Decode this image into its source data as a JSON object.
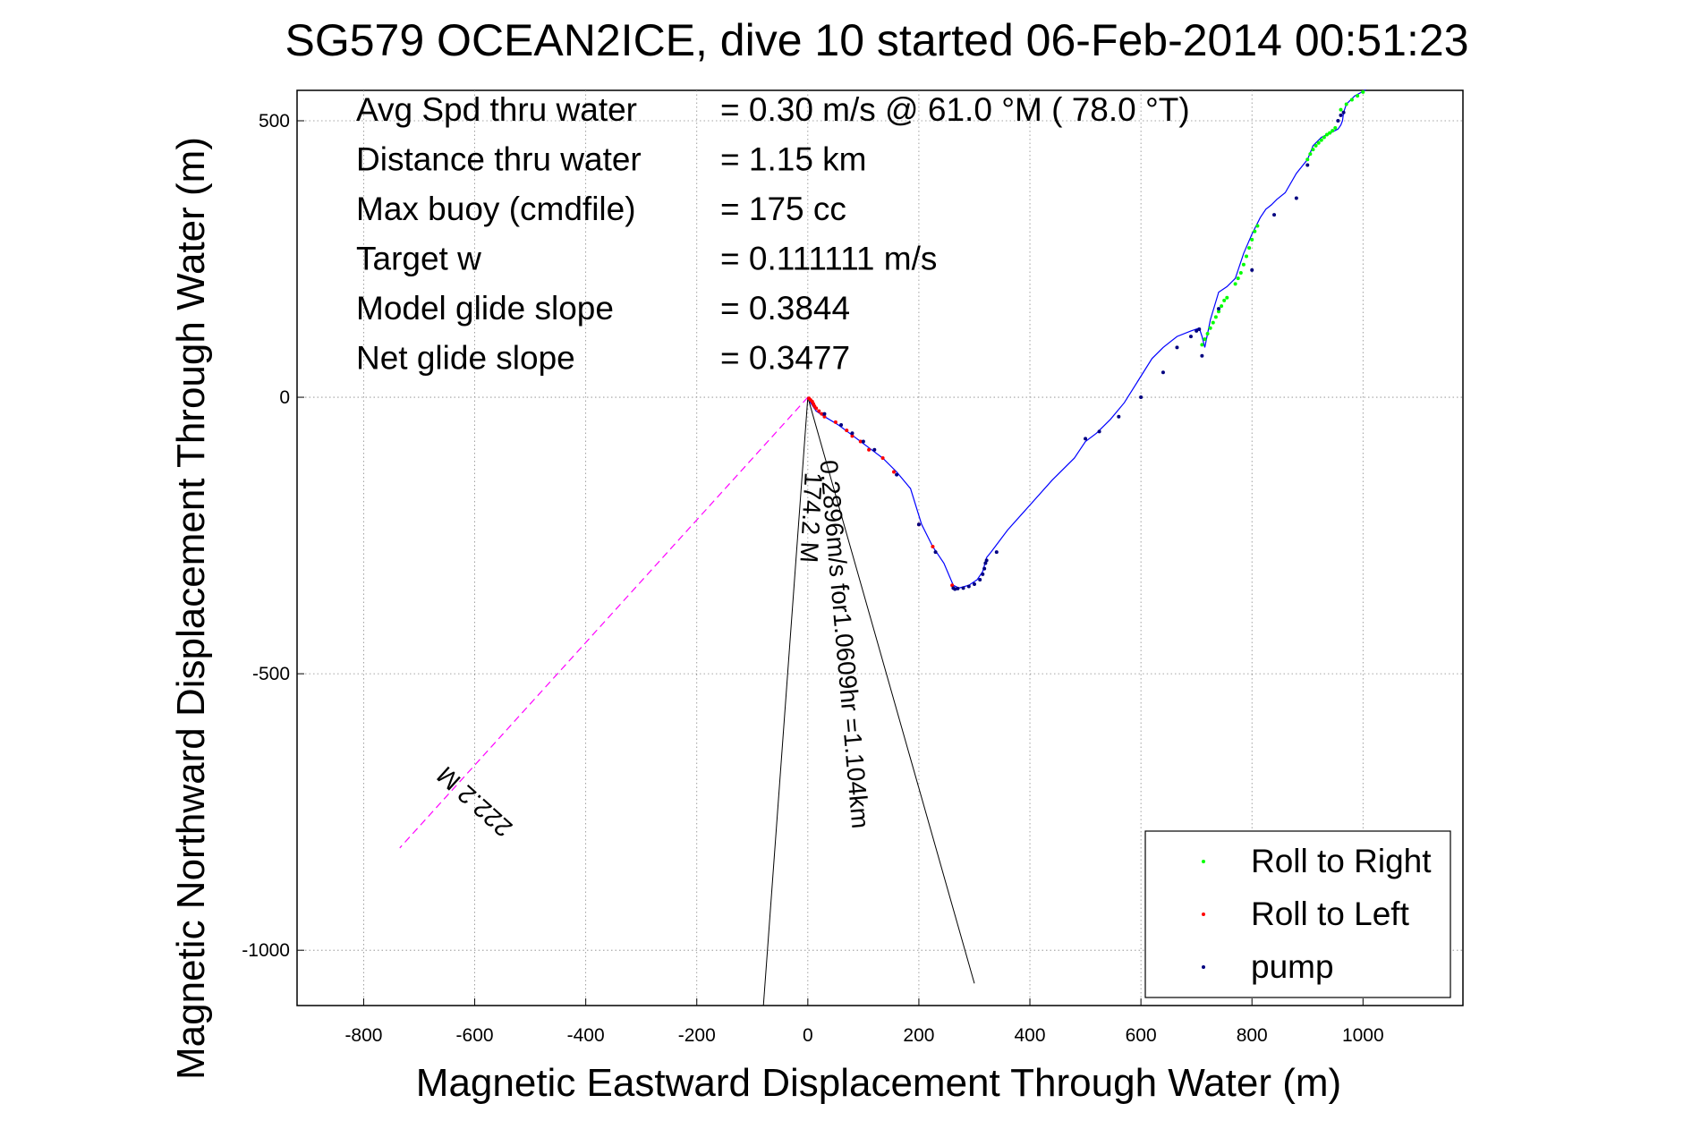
{
  "chart_data": {
    "type": "line",
    "title": "SG579 OCEAN2ICE, dive 10 started 06-Feb-2014 00:51:23",
    "xlabel": "Magnetic Eastward Displacement Through Water (m)",
    "ylabel": "Magnetic Northward Displacement Through Water (m)",
    "xlim": [
      -920,
      1180
    ],
    "ylim": [
      -1100,
      555
    ],
    "xticks": [
      -800,
      -600,
      -400,
      -200,
      0,
      200,
      400,
      600,
      800,
      1000
    ],
    "xtick_labels": [
      "-800",
      "-600",
      "-400",
      "-200",
      "0",
      "200",
      "400",
      "600",
      "800",
      "1000"
    ],
    "yticks": [
      500,
      0,
      -500,
      -1000
    ],
    "ytick_labels": [
      "500",
      "0",
      "-500",
      "-1000"
    ],
    "grid": true,
    "legend_position": "bottom-right",
    "stats": [
      {
        "label": "Avg Spd thru water",
        "value": "=  0.30 m/s @  61.0 °M ( 78.0 °T)"
      },
      {
        "label": "Distance thru water",
        "value": "=  1.15 km"
      },
      {
        "label": "Max buoy (cmdfile)",
        "value": "= 175 cc"
      },
      {
        "label": "Target w",
        "value": "= 0.111111 m/s"
      },
      {
        "label": "Model glide slope",
        "value": "= 0.3844"
      },
      {
        "label": "Net glide slope",
        "value": "= 0.3477"
      }
    ],
    "track": {
      "color": "#0000ff",
      "x": [
        0,
        5,
        15,
        30,
        55,
        75,
        95,
        115,
        135,
        160,
        185,
        205,
        225,
        245,
        262,
        272,
        290,
        305,
        315,
        322,
        330,
        360,
        400,
        440,
        480,
        500,
        520,
        545,
        570,
        595,
        620,
        640,
        665,
        690,
        705,
        710,
        715,
        725,
        740,
        755,
        770,
        785,
        800,
        815,
        825,
        835,
        845,
        860,
        880,
        900,
        910,
        925,
        945,
        955,
        960,
        963,
        965,
        970,
        985,
        1005
      ],
      "y": [
        0,
        -10,
        -25,
        -35,
        -50,
        -65,
        -80,
        -95,
        -110,
        -135,
        -165,
        -230,
        -270,
        -300,
        -340,
        -345,
        -340,
        -330,
        -315,
        -290,
        -280,
        -240,
        -195,
        -150,
        -110,
        -80,
        -65,
        -40,
        -10,
        30,
        70,
        90,
        110,
        120,
        125,
        110,
        90,
        140,
        190,
        200,
        215,
        260,
        295,
        325,
        340,
        348,
        358,
        370,
        405,
        430,
        455,
        470,
        480,
        485,
        492,
        500,
        515,
        530,
        545,
        556
      ]
    },
    "series": [
      {
        "name": "Roll to Right",
        "color": "#00ff00",
        "x": [
          710,
          715,
          720,
          725,
          730,
          735,
          740,
          745,
          750,
          755,
          770,
          775,
          780,
          785,
          790,
          795,
          800,
          805,
          810,
          900,
          905,
          910,
          915,
          920,
          925,
          930,
          935,
          940,
          945,
          950,
          960,
          970,
          980,
          990,
          1000
        ],
        "y": [
          95,
          105,
          115,
          125,
          135,
          145,
          155,
          165,
          175,
          180,
          205,
          215,
          225,
          240,
          255,
          270,
          285,
          300,
          310,
          430,
          440,
          448,
          455,
          460,
          465,
          470,
          475,
          478,
          482,
          487,
          520,
          530,
          538,
          545,
          552
        ]
      },
      {
        "name": "Roll to Left",
        "color": "#ff0000",
        "x": [
          2,
          5,
          8,
          10,
          12,
          15,
          20,
          25,
          30,
          50,
          70,
          80,
          95,
          110,
          135,
          155,
          200,
          225,
          260
        ],
        "y": [
          -2,
          -5,
          -8,
          -12,
          -16,
          -20,
          -25,
          -30,
          -35,
          -45,
          -60,
          -70,
          -80,
          -95,
          -110,
          -135,
          -230,
          -270,
          -340
        ]
      },
      {
        "name": "pump",
        "color": "#000080",
        "x": [
          30,
          60,
          80,
          100,
          120,
          160,
          200,
          230,
          262,
          265,
          270,
          280,
          290,
          300,
          310,
          315,
          318,
          320,
          322,
          340,
          500,
          525,
          560,
          600,
          640,
          665,
          690,
          700,
          705,
          710,
          740,
          800,
          840,
          880,
          900,
          955,
          960,
          965
        ],
        "y": [
          -30,
          -50,
          -65,
          -80,
          -95,
          -140,
          -230,
          -280,
          -345,
          -347,
          -346,
          -345,
          -342,
          -338,
          -330,
          -320,
          -310,
          -300,
          -295,
          -280,
          -75,
          -62,
          -35,
          0,
          45,
          90,
          110,
          120,
          123,
          75,
          160,
          230,
          330,
          360,
          420,
          500,
          510,
          515
        ]
      }
    ],
    "annotations": {
      "mag_line_label": "222.2 M",
      "mag_line_color": "#ff00ff",
      "mag_line": {
        "x": [
          0,
          -735
        ],
        "y": [
          0,
          -815
        ]
      },
      "speed_label": "0.2896m/s for1.0609hr =1.104km",
      "heading_label": "174.2 M",
      "cone_lines": [
        {
          "x": [
            0,
            -80
          ],
          "y": [
            0,
            -1100
          ]
        },
        {
          "x": [
            0,
            300
          ],
          "y": [
            0,
            -1060
          ]
        }
      ]
    }
  }
}
